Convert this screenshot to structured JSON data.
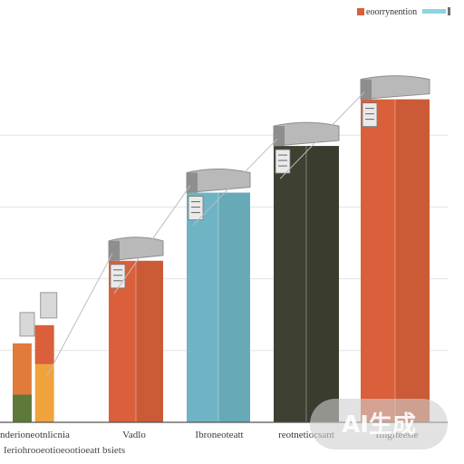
{
  "chart_data": {
    "type": "bar",
    "title": "",
    "xlabel": "",
    "ylabel": "",
    "ylim": [
      0,
      100
    ],
    "grid": true,
    "legend": {
      "placement": "top-right",
      "label": "eoorrynention"
    },
    "categories": [
      "enderioneotnlicnia",
      "Vadlo",
      "Ibroneoteatt",
      "reotnetiocsant",
      "Ifngfteesie"
    ],
    "values": [
      22,
      45,
      64,
      77,
      90
    ],
    "colors": [
      "#e07b3c",
      "#d9603a",
      "#6fb4c4",
      "#3e4132",
      "#d9603a"
    ],
    "bottom_note": "Ieriohrooeotioeootioeatt bsiets",
    "watermark": "AI生成"
  }
}
